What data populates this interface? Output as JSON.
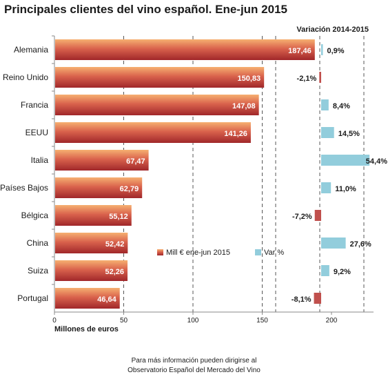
{
  "chart_data": {
    "type": "bar",
    "orientation": "horizontal",
    "title": "Principales clientes del vino español. Ene-jun 2015",
    "xlabel": "Millones de euros",
    "secondary_title": "Variación 2014-2015",
    "xlim": [
      0,
      225
    ],
    "xticks": [
      "0",
      "50",
      "100",
      "150",
      "200"
    ],
    "categories": [
      "Alemania",
      "Reino Unido",
      "Francia",
      "EEUU",
      "Italia",
      "Países Bajos",
      "Bélgica",
      "China",
      "Suiza",
      "Portugal"
    ],
    "series": [
      {
        "name": "Mill € ene-jun 2015",
        "values": [
          187.46,
          150.83,
          147.08,
          141.26,
          67.47,
          62.79,
          55.12,
          52.42,
          52.26,
          46.64
        ],
        "labels": [
          "187,46",
          "150,83",
          "147,08",
          "141,26",
          "67,47",
          "62,79",
          "55,12",
          "52,42",
          "52,26",
          "46,64"
        ]
      },
      {
        "name": "Var %",
        "values": [
          0.9,
          -2.1,
          8.4,
          14.5,
          54.4,
          11.0,
          -7.2,
          27.6,
          9.2,
          -8.1
        ],
        "labels": [
          "0,9%",
          "-2,1%",
          "8,4%",
          "14,5%",
          "54,4%",
          "11,0%",
          "-7,2%",
          "27,6%",
          "9,2%",
          "-8,1%"
        ]
      }
    ],
    "legend_position": "center-right",
    "grid": "vertical dashed",
    "colors": {
      "bar_top": "#f6b071",
      "bar_mid": "#d9624c",
      "bar_bottom": "#a0272a",
      "var_positive": "#92cddc",
      "var_negative": "#c0504d"
    }
  },
  "footer": {
    "line1": "Para más información pueden dirigirse al",
    "line2": "Observatorio Español del Mercado del Vino"
  }
}
